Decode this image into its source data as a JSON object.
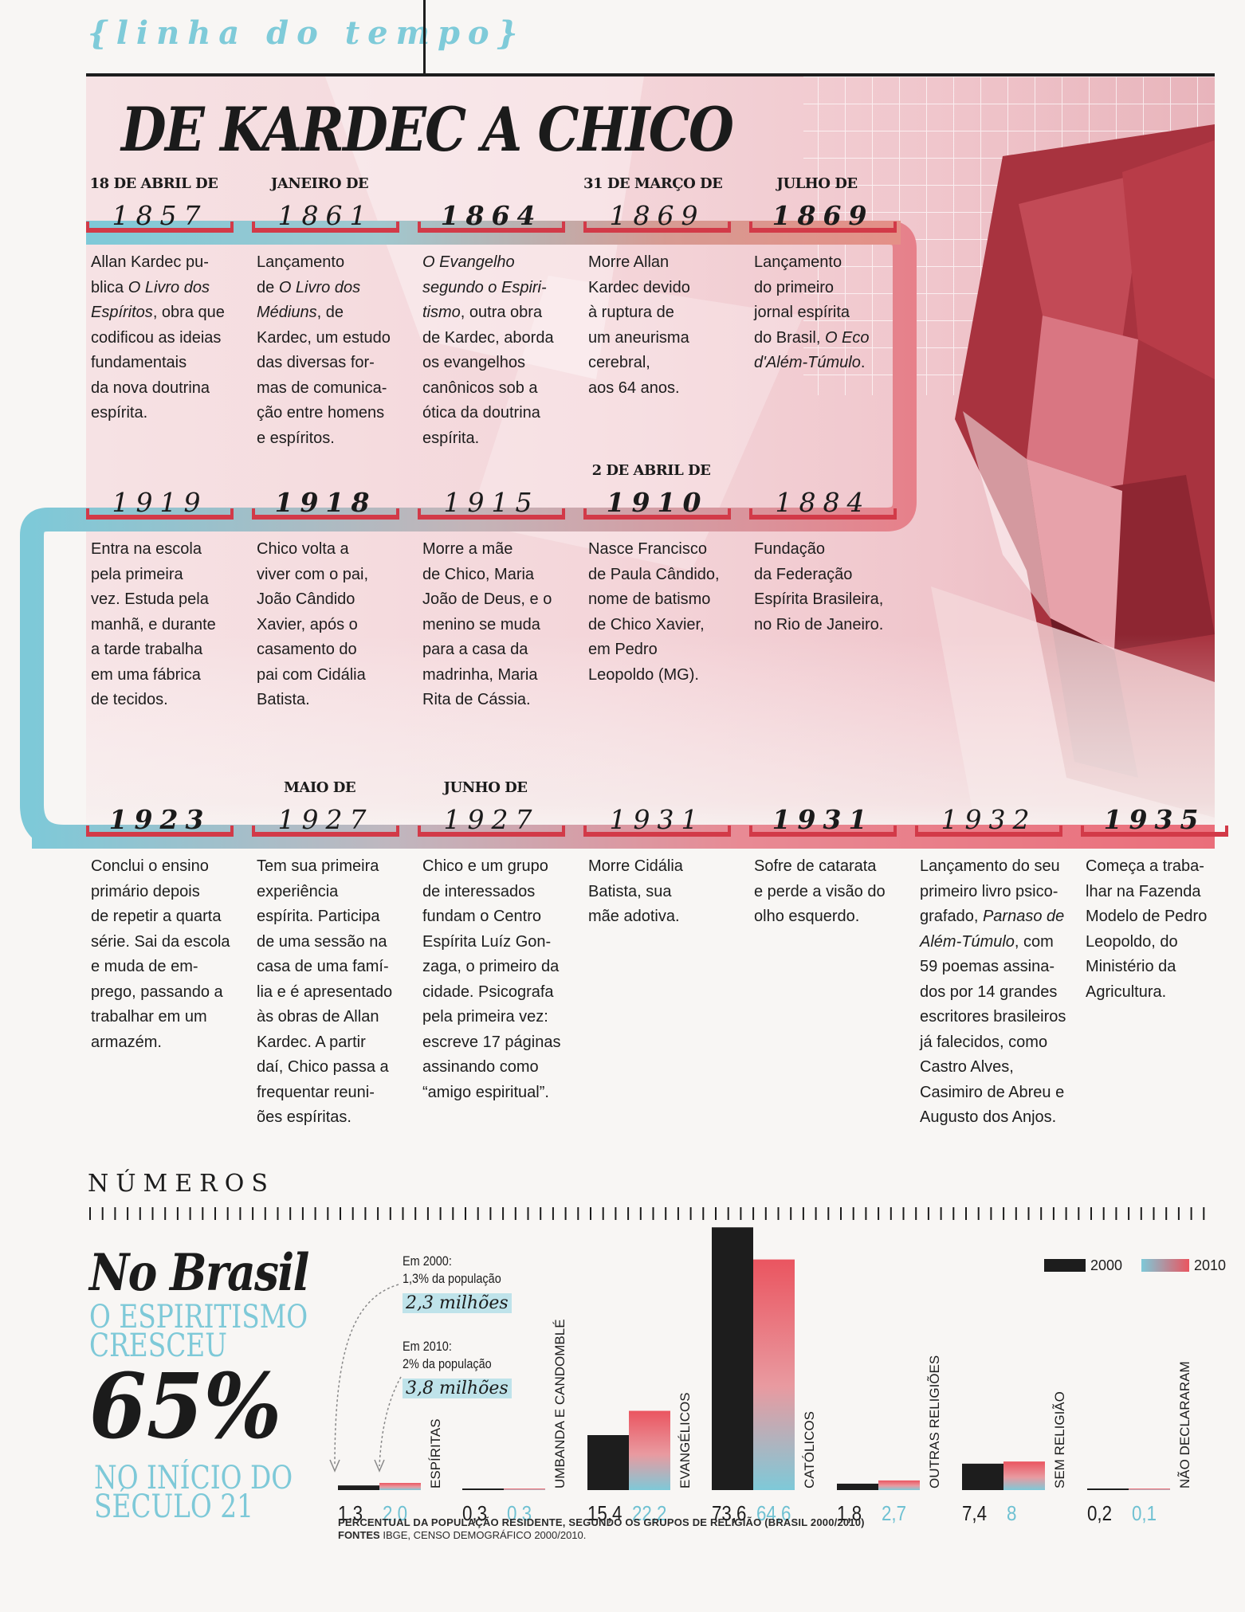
{
  "section_tag": "{linha do tempo}",
  "title": "DE KARDEC A CHICO",
  "timeline": [
    {
      "pre": "18 DE ABRIL DE",
      "year": "1857",
      "bold": false,
      "text": "Allan Kardec pu-|blica <i>O Livro dos</i>|<i>Espíritos</i>, obra que|codificou as ideias|fundamentais|da nova doutrina|espírita."
    },
    {
      "pre": "JANEIRO DE",
      "year": "1861",
      "bold": false,
      "text": "Lançamento|de <i>O Livro dos</i>|<i>Médiuns</i>, de|Kardec, um estudo|das diversas for-|mas de comunica-|ção entre homens|e espíritos."
    },
    {
      "pre": "",
      "year": "1864",
      "bold": true,
      "text": "<i>O Evangelho</i>|<i>segundo o Espiri-</i>|<i>tismo</i>, outra obra|de Kardec, aborda|os evangelhos|canônicos sob a|ótica da doutrina|espírita."
    },
    {
      "pre": "31 DE MARÇO DE",
      "year": "1869",
      "bold": false,
      "text": "Morre Allan|Kardec devido|à ruptura de|um aneurisma|cerebral,|aos 64 anos."
    },
    {
      "pre": "JULHO DE",
      "year": "1869",
      "bold": true,
      "text": "Lançamento|do primeiro|jornal espírita|do Brasil, <i>O Eco</i>|<i>d'Além-Túmulo</i>."
    },
    {
      "pre": "",
      "year": "1919",
      "bold": false,
      "text": "Entra na escola|pela primeira|vez. Estuda pela|manhã, e durante|a tarde trabalha|em uma fábrica|de tecidos."
    },
    {
      "pre": "",
      "year": "1918",
      "bold": true,
      "text": "Chico volta a|viver com o pai,|João Cândido|Xavier, após o|casamento do|pai com Cidália|Batista."
    },
    {
      "pre": "",
      "year": "1915",
      "bold": false,
      "text": "Morre a mãe|de Chico, Maria|João de Deus, e o|menino se muda|para a casa da|madrinha, Maria|Rita de Cássia."
    },
    {
      "pre": "2 DE ABRIL DE",
      "year": "1910",
      "bold": true,
      "text": "Nasce Francisco|de Paula Cândido,|nome de batismo|de Chico Xavier,|em Pedro|Leopoldo (MG)."
    },
    {
      "pre": "",
      "year": "1884",
      "bold": false,
      "text": "Fundação|da Federação|Espírita Brasileira,|no Rio de Janeiro."
    },
    {
      "pre": "",
      "year": "1923",
      "bold": true,
      "text": "Conclui o ensino|primário depois|de repetir a quarta|série. Sai da escola|e muda de em-|prego, passando a|trabalhar em um|armazém."
    },
    {
      "pre": "MAIO DE",
      "year": "1927",
      "bold": false,
      "text": "Tem sua primeira|experiência|espírita. Participa|de uma sessão na|casa de uma famí-|lia e é apresentado|às obras de Allan|Kardec. A partir|daí, Chico passa a|frequentar reuni-|ões espíritas."
    },
    {
      "pre": "JUNHO DE",
      "year": "1927",
      "bold": false,
      "text": "Chico e um grupo|de interessados|fundam o Centro|Espírita Luíz Gon-|zaga, o primeiro da|cidade. Psicografa|pela primeira vez:|escreve 17 páginas|assinando como|“amigo espiritual”."
    },
    {
      "pre": "",
      "year": "1931",
      "bold": false,
      "text": "Morre Cidália|Batista, sua|mãe adotiva."
    },
    {
      "pre": "",
      "year": "1931",
      "bold": true,
      "text": "Sofre de catarata|e perde a visão do|olho esquerdo."
    },
    {
      "pre": "",
      "year": "1932",
      "bold": false,
      "text": "Lançamento do seu|primeiro livro psico-|grafado, <i>Parnaso de</i>|<i>Além-Túmulo</i>, com|59 poemas assina-|dos por 14 grandes|escritores brasileiros|já falecidos, como|Castro Alves,|Casimiro de Abreu e|Augusto dos Anjos."
    },
    {
      "pre": "",
      "year": "1935",
      "bold": true,
      "text": "Começa a traba-|lhar na Fazenda|Modelo de Pedro|Leopoldo, do|Ministério da|Agricultura."
    }
  ],
  "numbers": {
    "heading": "NÚMEROS",
    "title": "No Brasil",
    "subtitle_1": "O ESPIRITISMO",
    "subtitle_2": "CRESCEU",
    "percent": "65%",
    "subtitle_3": "NO INÍCIO DO",
    "subtitle_4": "SÉCULO 21",
    "note_2000_a": "Em 2000:",
    "note_2000_b": "1,3% da população",
    "note_2000_c": "2,3 milhões",
    "note_2010_a": "Em 2010:",
    "note_2010_b": "2% da população",
    "note_2010_c": "3,8 milhões",
    "source_1": "PERCENTUAL DA POPULAÇÃO RESIDENTE, SEGUNDO OS GRUPOS DE RELIGIÃO (BRASIL 2000/2010)",
    "source_2_label": "FONTES",
    "source_2": " IBGE, CENSO DEMOGRÁFICO 2000/2010."
  },
  "colors": {
    "black": "#1d1d1d",
    "red": "#e4515c",
    "blue": "#7ec9d8",
    "track_red": "#d23a48"
  },
  "chart_data": {
    "type": "bar",
    "categories": [
      "ESPÍRITAS",
      "UMBANDA E CANDOMBLÉ",
      "EVANGÉLICOS",
      "CATÓLICOS",
      "OUTRAS RELIGIÕES",
      "SEM RELIGIÃO",
      "NÃO DECLARARAM"
    ],
    "series": [
      {
        "name": "2000",
        "values": [
          1.3,
          0.3,
          15.4,
          73.6,
          1.8,
          7.4,
          0.2
        ],
        "labels": [
          "1,3",
          "0,3",
          "15,4",
          "73,6",
          "1,8",
          "7,4",
          "0,2"
        ]
      },
      {
        "name": "2010",
        "values": [
          2.0,
          0.3,
          22.2,
          64.6,
          2.7,
          8,
          0.1
        ],
        "labels": [
          "2,0",
          "0,3",
          "22,2",
          "64,6",
          "2,7",
          "8",
          "0,1"
        ]
      }
    ],
    "legend": "top-right"
  }
}
